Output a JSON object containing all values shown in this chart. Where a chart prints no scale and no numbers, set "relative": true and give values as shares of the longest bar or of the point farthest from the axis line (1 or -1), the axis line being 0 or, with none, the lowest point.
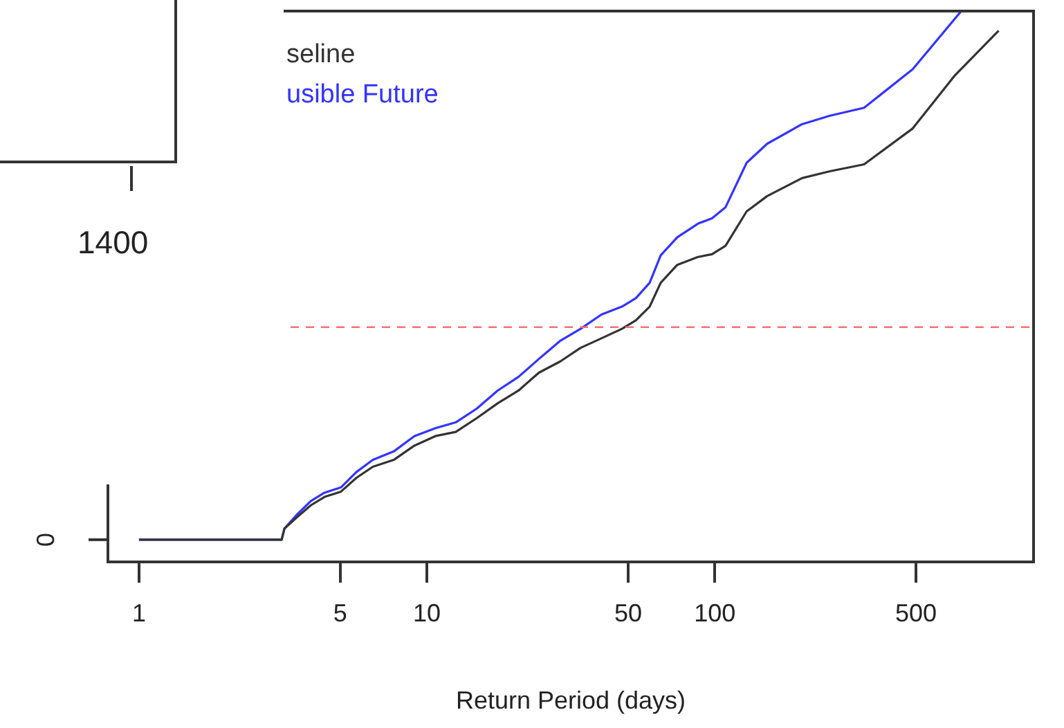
{
  "chart_data": [
    {
      "type": "other",
      "annotations": [
        "1400"
      ]
    },
    {
      "type": "line",
      "relative": true,
      "log": "x",
      "xlabel": "Return Period (days)",
      "legend": "top left",
      "marker": "none",
      "line_style": "solid",
      "annotations": [
        "0"
      ],
      "xlim": [
        0.78,
        1280
      ],
      "xticks": [
        1,
        5,
        10,
        50,
        100,
        500
      ],
      "ref_lines": [
        {
          "axis": "y",
          "value": 0.402,
          "color": "#ff6f6f",
          "line_style": "dashed"
        }
      ],
      "series": [
        {
          "name": "seline",
          "color": "#333333",
          "x": [
            1,
            3.13,
            3.2,
            3.53,
            3.95,
            4.41,
            5.03,
            5.69,
            6.49,
            7.67,
            9.05,
            10.7,
            12.6,
            14.9,
            17.6,
            20.8,
            24.5,
            29.0,
            34.2,
            40.4,
            47.6,
            53.2,
            59.4,
            64.9,
            74.1,
            87.5,
            97.8,
            109,
            129,
            152,
            201,
            251,
            330,
            487,
            679,
            968
          ],
          "values": [
            0,
            0,
            0.021,
            0.042,
            0.065,
            0.081,
            0.091,
            0.117,
            0.138,
            0.151,
            0.178,
            0.196,
            0.204,
            0.23,
            0.258,
            0.282,
            0.316,
            0.337,
            0.363,
            0.381,
            0.399,
            0.415,
            0.441,
            0.486,
            0.52,
            0.535,
            0.54,
            0.556,
            0.621,
            0.65,
            0.684,
            0.697,
            0.71,
            0.778,
            0.877,
            0.963
          ]
        },
        {
          "name": "usible Future",
          "color": "#3333ff",
          "x": [
            1,
            3.13,
            3.2,
            3.53,
            3.95,
            4.41,
            5.03,
            5.69,
            6.49,
            7.67,
            9.05,
            10.7,
            12.6,
            14.9,
            17.6,
            20.8,
            24.5,
            29.0,
            34.2,
            40.4,
            47.6,
            53.2,
            59.4,
            64.9,
            74.1,
            87.5,
            97.8,
            109,
            129,
            152,
            201,
            251,
            330,
            487,
            718
          ],
          "values": [
            0,
            0,
            0.021,
            0.047,
            0.073,
            0.089,
            0.099,
            0.128,
            0.151,
            0.167,
            0.196,
            0.211,
            0.222,
            0.248,
            0.282,
            0.308,
            0.342,
            0.376,
            0.399,
            0.426,
            0.441,
            0.457,
            0.486,
            0.538,
            0.572,
            0.598,
            0.608,
            0.629,
            0.713,
            0.749,
            0.786,
            0.802,
            0.817,
            0.89,
            1
          ]
        }
      ]
    }
  ]
}
